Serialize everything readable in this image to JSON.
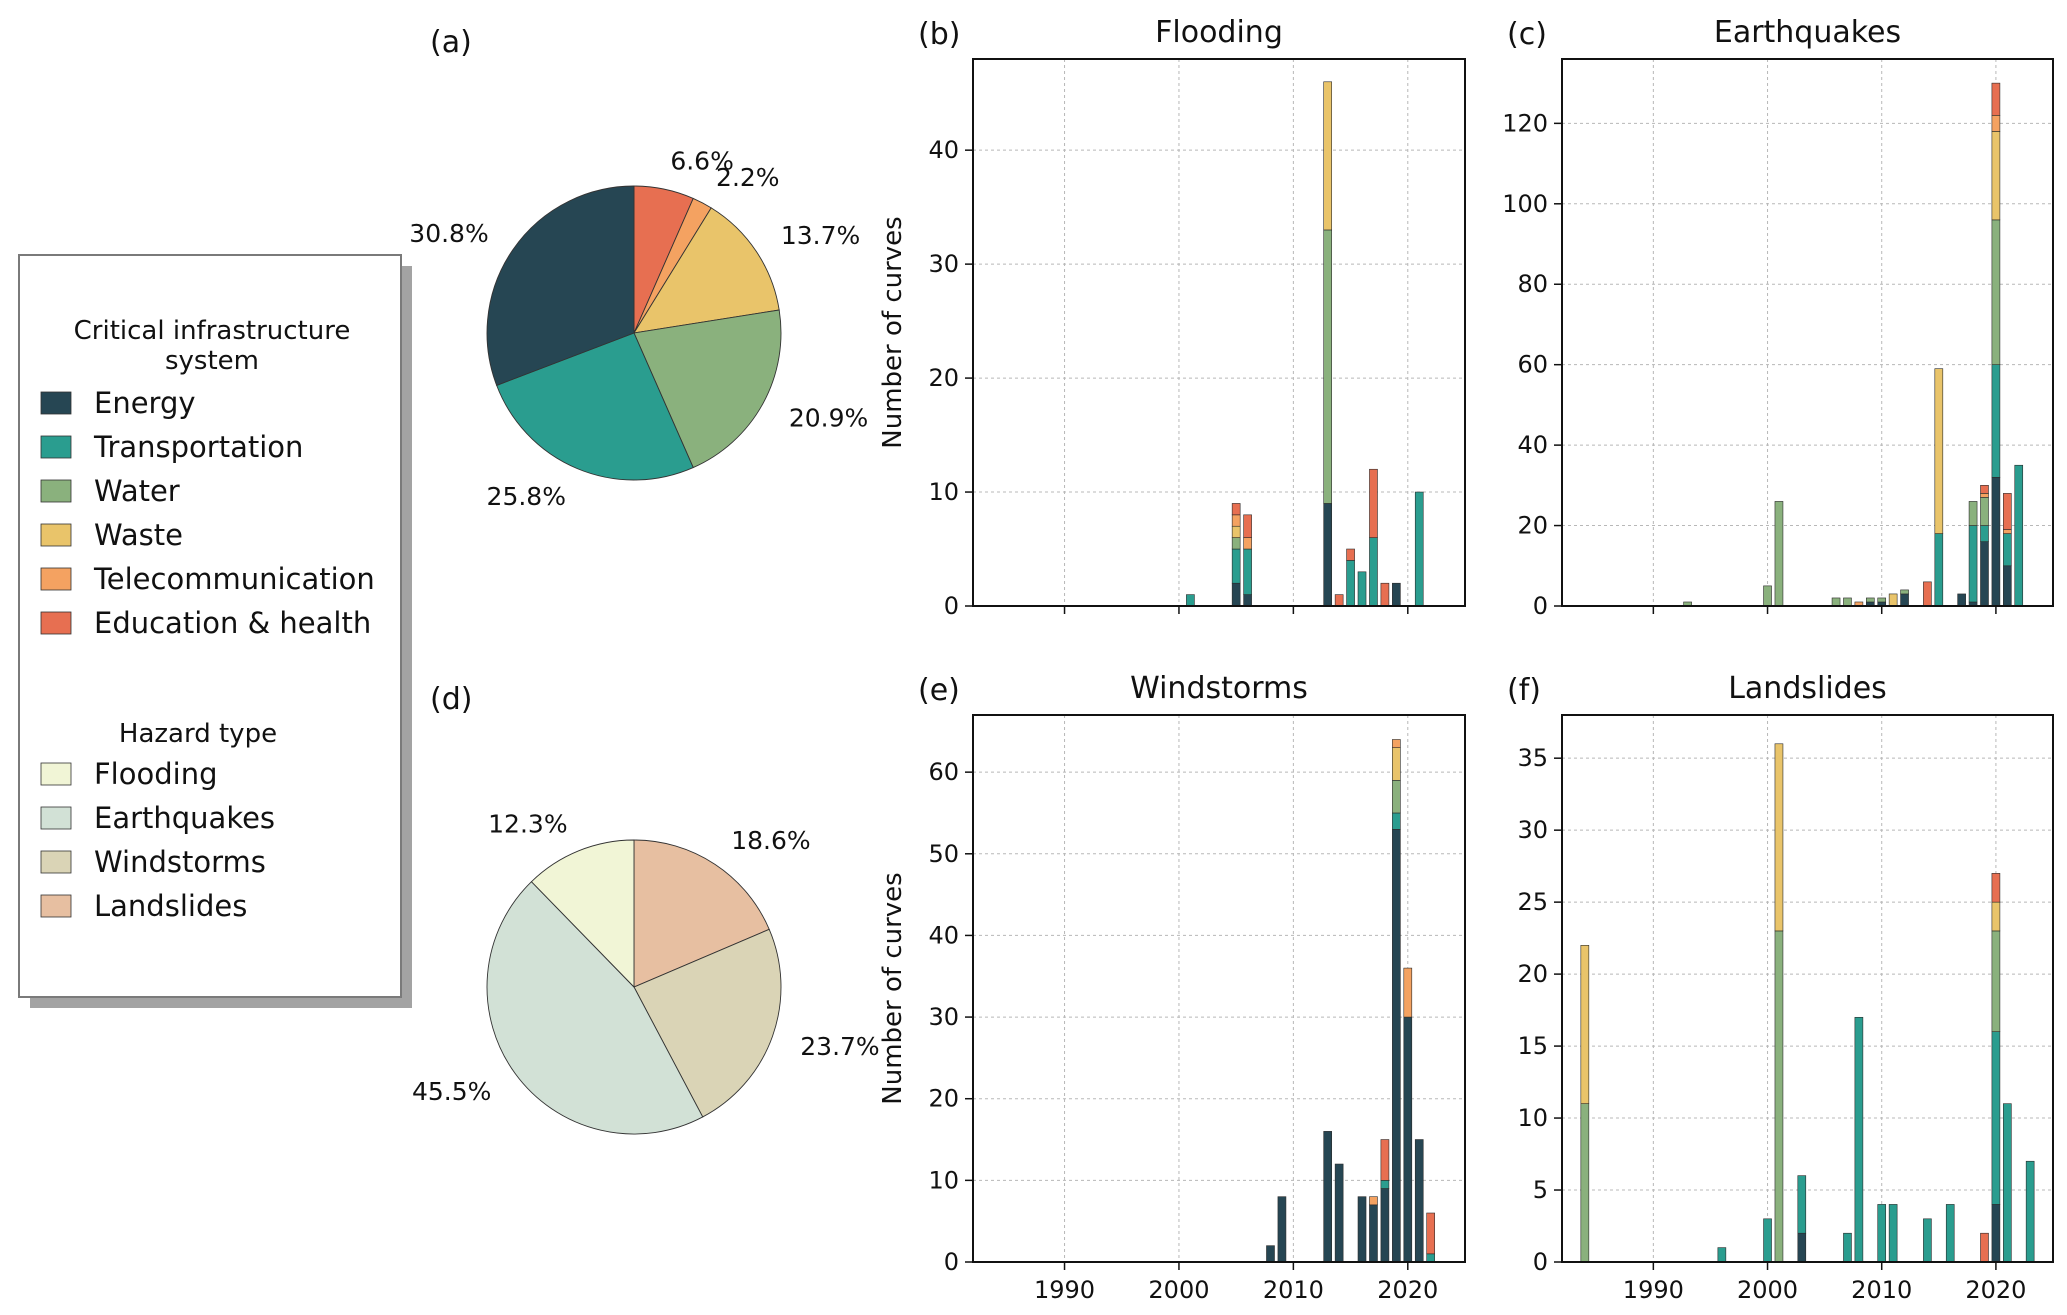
{
  "colors": {
    "Energy": "#264653",
    "Transportation": "#2A9D8F",
    "Water": "#8AB17D",
    "Waste": "#E9C46A",
    "Telecommunication": "#F4A261",
    "Education & health": "#E76F51",
    "Flooding": "#F1F5D6",
    "Earthquakes": "#D2E1D6",
    "Windstorms": "#DAD4B6",
    "Landslides": "#E7BFA1"
  },
  "legend": {
    "system_title_line1": "Critical infrastructure",
    "system_title_line2": "system",
    "systems": [
      "Energy",
      "Transportation",
      "Water",
      "Waste",
      "Telecommunication",
      "Education & health"
    ],
    "hazard_title": "Hazard type",
    "hazards": [
      "Flooding",
      "Earthquakes",
      "Windstorms",
      "Landslides"
    ]
  },
  "chart_data": [
    {
      "id": "a",
      "panel_label": "(a)",
      "type": "pie",
      "title": "",
      "labels": [
        "Education & health",
        "Telecommunication",
        "Waste",
        "Water",
        "Transportation",
        "Energy"
      ],
      "values": [
        6.6,
        2.2,
        13.7,
        20.9,
        25.8,
        30.8
      ],
      "value_labels": [
        "6.6%",
        "2.2%",
        "13.7%",
        "20.9%",
        "25.8%",
        "30.8%"
      ]
    },
    {
      "id": "d",
      "panel_label": "(d)",
      "type": "pie",
      "title": "",
      "labels": [
        "Landslides",
        "Windstorms",
        "Earthquakes",
        "Flooding"
      ],
      "values": [
        18.6,
        23.7,
        45.5,
        12.3
      ],
      "value_labels": [
        "18.6%",
        "23.7%",
        "45.5%",
        "12.3%"
      ]
    },
    {
      "id": "b",
      "panel_label": "(b)",
      "type": "bar",
      "stacked": true,
      "title": "Flooding",
      "ylabel": "Number of curves",
      "xlim": [
        1982,
        2025
      ],
      "ylim": [
        0,
        48
      ],
      "xticks": [
        1990,
        2000,
        2010,
        2020
      ],
      "yticks": [
        0,
        10,
        20,
        30,
        40
      ],
      "grid": true,
      "bars": [
        {
          "x": 2001,
          "segments": [
            [
              "Transportation",
              1
            ]
          ]
        },
        {
          "x": 2005,
          "segments": [
            [
              "Energy",
              2
            ],
            [
              "Transportation",
              3
            ],
            [
              "Water",
              1
            ],
            [
              "Waste",
              1
            ],
            [
              "Telecommunication",
              1
            ],
            [
              "Education & health",
              1
            ]
          ]
        },
        {
          "x": 2006,
          "segments": [
            [
              "Energy",
              1
            ],
            [
              "Transportation",
              4
            ],
            [
              "Telecommunication",
              1
            ],
            [
              "Education & health",
              2
            ]
          ]
        },
        {
          "x": 2013,
          "segments": [
            [
              "Energy",
              9
            ],
            [
              "Water",
              24
            ],
            [
              "Waste",
              13
            ]
          ]
        },
        {
          "x": 2014,
          "segments": [
            [
              "Education & health",
              1
            ]
          ]
        },
        {
          "x": 2015,
          "segments": [
            [
              "Transportation",
              4
            ],
            [
              "Education & health",
              1
            ]
          ]
        },
        {
          "x": 2016,
          "segments": [
            [
              "Transportation",
              3
            ]
          ]
        },
        {
          "x": 2017,
          "segments": [
            [
              "Transportation",
              6
            ],
            [
              "Education & health",
              6
            ]
          ]
        },
        {
          "x": 2018,
          "segments": [
            [
              "Education & health",
              2
            ]
          ]
        },
        {
          "x": 2019,
          "segments": [
            [
              "Energy",
              2
            ]
          ]
        },
        {
          "x": 2021,
          "segments": [
            [
              "Transportation",
              10
            ]
          ]
        }
      ]
    },
    {
      "id": "c",
      "panel_label": "(c)",
      "type": "bar",
      "stacked": true,
      "title": "Earthquakes",
      "ylabel": "",
      "xlim": [
        1982,
        2025
      ],
      "ylim": [
        0,
        136
      ],
      "xticks": [
        1990,
        2000,
        2010,
        2020
      ],
      "yticks": [
        0,
        20,
        40,
        60,
        80,
        100,
        120
      ],
      "grid": true,
      "bars": [
        {
          "x": 1993,
          "segments": [
            [
              "Water",
              1
            ]
          ]
        },
        {
          "x": 2000,
          "segments": [
            [
              "Water",
              5
            ]
          ]
        },
        {
          "x": 2001,
          "segments": [
            [
              "Water",
              26
            ]
          ]
        },
        {
          "x": 2006,
          "segments": [
            [
              "Water",
              2
            ]
          ]
        },
        {
          "x": 2007,
          "segments": [
            [
              "Water",
              2
            ]
          ]
        },
        {
          "x": 2008,
          "segments": [
            [
              "Telecommunication",
              1
            ]
          ]
        },
        {
          "x": 2009,
          "segments": [
            [
              "Energy",
              1
            ],
            [
              "Water",
              1
            ]
          ]
        },
        {
          "x": 2010,
          "segments": [
            [
              "Energy",
              1
            ],
            [
              "Water",
              1
            ]
          ]
        },
        {
          "x": 2011,
          "segments": [
            [
              "Waste",
              3
            ]
          ]
        },
        {
          "x": 2012,
          "segments": [
            [
              "Energy",
              3
            ],
            [
              "Water",
              1
            ]
          ]
        },
        {
          "x": 2014,
          "segments": [
            [
              "Education & health",
              6
            ]
          ]
        },
        {
          "x": 2015,
          "segments": [
            [
              "Transportation",
              18
            ],
            [
              "Waste",
              41
            ]
          ]
        },
        {
          "x": 2017,
          "segments": [
            [
              "Energy",
              3
            ]
          ]
        },
        {
          "x": 2018,
          "segments": [
            [
              "Energy",
              1
            ],
            [
              "Transportation",
              19
            ],
            [
              "Water",
              6
            ]
          ]
        },
        {
          "x": 2019,
          "segments": [
            [
              "Energy",
              16
            ],
            [
              "Transportation",
              4
            ],
            [
              "Water",
              7
            ],
            [
              "Telecommunication",
              1
            ],
            [
              "Education & health",
              2
            ]
          ]
        },
        {
          "x": 2020,
          "segments": [
            [
              "Energy",
              32
            ],
            [
              "Transportation",
              28
            ],
            [
              "Water",
              36
            ],
            [
              "Waste",
              22
            ],
            [
              "Telecommunication",
              4
            ],
            [
              "Education & health",
              8
            ]
          ]
        },
        {
          "x": 2021,
          "segments": [
            [
              "Energy",
              10
            ],
            [
              "Transportation",
              8
            ],
            [
              "Telecommunication",
              1
            ],
            [
              "Education & health",
              9
            ]
          ]
        },
        {
          "x": 2022,
          "segments": [
            [
              "Transportation",
              35
            ]
          ]
        }
      ]
    },
    {
      "id": "e",
      "panel_label": "(e)",
      "type": "bar",
      "stacked": true,
      "title": "Windstorms",
      "ylabel": "Number of curves",
      "xlim": [
        1982,
        2025
      ],
      "ylim": [
        0,
        67
      ],
      "xticks": [
        1990,
        2000,
        2010,
        2020
      ],
      "yticks": [
        0,
        10,
        20,
        30,
        40,
        50,
        60
      ],
      "grid": true,
      "bars": [
        {
          "x": 2008,
          "segments": [
            [
              "Energy",
              2
            ]
          ]
        },
        {
          "x": 2009,
          "segments": [
            [
              "Energy",
              8
            ]
          ]
        },
        {
          "x": 2013,
          "segments": [
            [
              "Energy",
              16
            ]
          ]
        },
        {
          "x": 2014,
          "segments": [
            [
              "Energy",
              12
            ]
          ]
        },
        {
          "x": 2016,
          "segments": [
            [
              "Energy",
              8
            ]
          ]
        },
        {
          "x": 2017,
          "segments": [
            [
              "Energy",
              7
            ],
            [
              "Telecommunication",
              1
            ]
          ]
        },
        {
          "x": 2018,
          "segments": [
            [
              "Energy",
              9
            ],
            [
              "Transportation",
              1
            ],
            [
              "Education & health",
              5
            ]
          ]
        },
        {
          "x": 2019,
          "segments": [
            [
              "Energy",
              53
            ],
            [
              "Transportation",
              2
            ],
            [
              "Water",
              4
            ],
            [
              "Waste",
              4
            ],
            [
              "Telecommunication",
              1
            ]
          ]
        },
        {
          "x": 2020,
          "segments": [
            [
              "Energy",
              30
            ],
            [
              "Telecommunication",
              6
            ]
          ]
        },
        {
          "x": 2021,
          "segments": [
            [
              "Energy",
              15
            ]
          ]
        },
        {
          "x": 2022,
          "segments": [
            [
              "Transportation",
              1
            ],
            [
              "Education & health",
              5
            ]
          ]
        }
      ]
    },
    {
      "id": "f",
      "panel_label": "(f)",
      "type": "bar",
      "stacked": true,
      "title": "Landslides",
      "ylabel": "",
      "xlim": [
        1982,
        2025
      ],
      "ylim": [
        0,
        38
      ],
      "xticks": [
        1990,
        2000,
        2010,
        2020
      ],
      "yticks": [
        0,
        5,
        10,
        15,
        20,
        25,
        30,
        35
      ],
      "grid": true,
      "bars": [
        {
          "x": 1984,
          "segments": [
            [
              "Water",
              11
            ],
            [
              "Waste",
              11
            ]
          ]
        },
        {
          "x": 1996,
          "segments": [
            [
              "Transportation",
              1
            ]
          ]
        },
        {
          "x": 2000,
          "segments": [
            [
              "Transportation",
              3
            ]
          ]
        },
        {
          "x": 2001,
          "segments": [
            [
              "Water",
              23
            ],
            [
              "Waste",
              13
            ]
          ]
        },
        {
          "x": 2003,
          "segments": [
            [
              "Energy",
              2
            ],
            [
              "Transportation",
              4
            ]
          ]
        },
        {
          "x": 2007,
          "segments": [
            [
              "Transportation",
              2
            ]
          ]
        },
        {
          "x": 2008,
          "segments": [
            [
              "Transportation",
              17
            ]
          ]
        },
        {
          "x": 2010,
          "segments": [
            [
              "Transportation",
              4
            ]
          ]
        },
        {
          "x": 2011,
          "segments": [
            [
              "Transportation",
              4
            ]
          ]
        },
        {
          "x": 2014,
          "segments": [
            [
              "Transportation",
              3
            ]
          ]
        },
        {
          "x": 2016,
          "segments": [
            [
              "Transportation",
              4
            ]
          ]
        },
        {
          "x": 2019,
          "segments": [
            [
              "Education & health",
              2
            ]
          ]
        },
        {
          "x": 2020,
          "segments": [
            [
              "Energy",
              4
            ],
            [
              "Transportation",
              12
            ],
            [
              "Water",
              7
            ],
            [
              "Waste",
              2
            ],
            [
              "Education & health",
              2
            ]
          ]
        },
        {
          "x": 2021,
          "segments": [
            [
              "Transportation",
              11
            ]
          ]
        },
        {
          "x": 2023,
          "segments": [
            [
              "Transportation",
              7
            ]
          ]
        }
      ]
    }
  ]
}
